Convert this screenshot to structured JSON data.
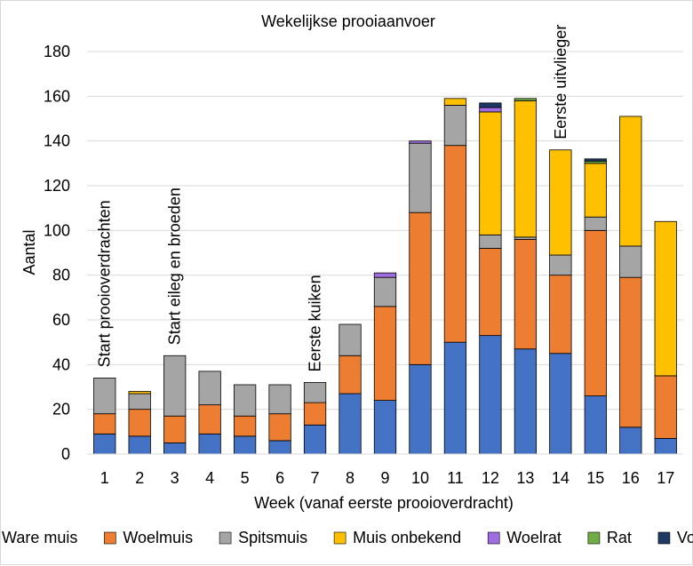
{
  "chart_data": {
    "type": "bar",
    "stacked": true,
    "title": "Wekelijkse prooiaanvoer",
    "xlabel": "Week (vanaf eerste prooioverdracht)",
    "ylabel": "Aantal",
    "ylim": [
      0,
      180
    ],
    "yticks": [
      0,
      20,
      40,
      60,
      80,
      100,
      120,
      140,
      160,
      180
    ],
    "grid": true,
    "legend_position": "bottom",
    "categories": [
      "1",
      "2",
      "3",
      "4",
      "5",
      "6",
      "7",
      "8",
      "9",
      "10",
      "11",
      "12",
      "13",
      "14",
      "15",
      "16",
      "17"
    ],
    "series": [
      {
        "name": "Ware muis",
        "color": "#4472c4",
        "values": [
          9,
          8,
          5,
          9,
          8,
          6,
          13,
          27,
          24,
          40,
          50,
          53,
          47,
          45,
          26,
          12,
          7
        ]
      },
      {
        "name": "Woelmuis",
        "color": "#ed7d31",
        "values": [
          9,
          12,
          12,
          13,
          9,
          12,
          10,
          17,
          42,
          68,
          88,
          39,
          49,
          35,
          74,
          67,
          28
        ]
      },
      {
        "name": "Spitsmuis",
        "color": "#a5a5a5",
        "values": [
          16,
          7,
          27,
          15,
          14,
          13,
          9,
          14,
          13,
          31,
          18,
          6,
          1,
          9,
          6,
          14,
          0
        ]
      },
      {
        "name": "Muis onbekend",
        "color": "#ffc000",
        "values": [
          0,
          1,
          0,
          0,
          0,
          0,
          0,
          0,
          0,
          0,
          3,
          55,
          61,
          47,
          24,
          58,
          69
        ]
      },
      {
        "name": "Woelrat",
        "color": "#9e6de0",
        "values": [
          0,
          0,
          0,
          0,
          0,
          0,
          0,
          0,
          2,
          1,
          0,
          2,
          0,
          0,
          0,
          0,
          0
        ]
      },
      {
        "name": "Rat",
        "color": "#70ad47",
        "values": [
          0,
          0,
          0,
          0,
          0,
          0,
          0,
          0,
          0,
          0,
          0,
          0,
          1,
          0,
          1,
          0,
          0
        ]
      },
      {
        "name": "Vogel",
        "color": "#1f3864",
        "values": [
          0,
          0,
          0,
          0,
          0,
          0,
          0,
          0,
          0,
          0,
          0,
          2,
          0,
          0,
          1,
          0,
          0
        ]
      }
    ],
    "annotations": [
      {
        "text": "Start prooioverdrachten",
        "category": "1"
      },
      {
        "text": "Start eileg en broeden",
        "category": "3"
      },
      {
        "text": "Eerste kuiken",
        "category": "7"
      },
      {
        "text": "Eerste uitvlieger",
        "category": "14"
      }
    ]
  }
}
